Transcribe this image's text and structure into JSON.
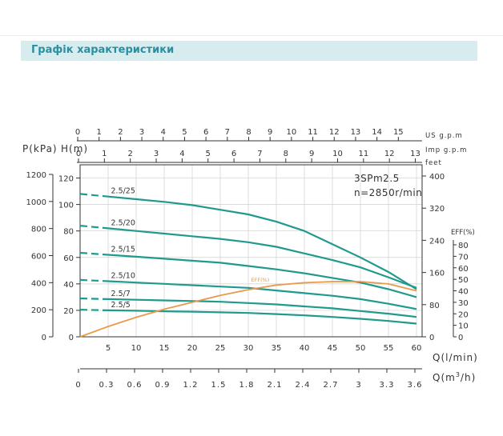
{
  "header": {
    "title": "Графік характеристики"
  },
  "colors": {
    "teal": "#1f9a8c",
    "orange": "#e89a4a",
    "axis": "#333333",
    "grid": "#cfcfcf",
    "header_bg": "#d6ecef",
    "header_text": "#2a8fa0"
  },
  "chart_data": {
    "type": "line",
    "model": "3SPm2.5",
    "speed": "n=2850r/min",
    "axes": {
      "us_gpm": {
        "label": "US g.p.m",
        "ticks": [
          "0",
          "1",
          "2",
          "3",
          "4",
          "5",
          "6",
          "7",
          "8",
          "9",
          "10",
          "11",
          "12",
          "13",
          "14",
          "15"
        ],
        "range": [
          0,
          16
        ]
      },
      "imp_gpm": {
        "label": "Imp g.p.m",
        "ticks": [
          "0",
          "1",
          "2",
          "3",
          "4",
          "5",
          "6",
          "7",
          "8",
          "9",
          "10",
          "11",
          "12",
          "13"
        ],
        "range": [
          0,
          13.2
        ]
      },
      "q_lmin": {
        "label": "Q(l/min)",
        "ticks": [
          "0",
          "5",
          "10",
          "15",
          "20",
          "25",
          "30",
          "35",
          "40",
          "45",
          "50",
          "55",
          "60"
        ],
        "range": [
          0,
          61
        ]
      },
      "q_m3h": {
        "label": "Q(m³/h)",
        "label_main": "Q(m",
        "label_sup": "3",
        "label_tail": "/h)",
        "ticks": [
          "0",
          "0.3",
          "0.6",
          "0.9",
          "1.2",
          "1.5",
          "1.8",
          "2.1",
          "2.4",
          "2.7",
          "3",
          "3.3",
          "3.6"
        ],
        "range": [
          0,
          3.66
        ]
      },
      "pressure_kpa": {
        "label": "P(kPa)",
        "ticks": [
          "0",
          "200",
          "400",
          "600",
          "800",
          "1000",
          "1200"
        ]
      },
      "head_m": {
        "label": "H(m)",
        "ticks": [
          "0",
          "20",
          "40",
          "60",
          "80",
          "100",
          "120"
        ],
        "range": [
          0,
          130
        ]
      },
      "head_feet": {
        "label": "feet",
        "ticks": [
          "0",
          "80",
          "160",
          "240",
          "320",
          "400"
        ]
      },
      "eff_pct": {
        "label": "EFF(%)",
        "ticks": [
          "0",
          "10",
          "20",
          "30",
          "40",
          "50",
          "60",
          "70",
          "80"
        ],
        "range": [
          0,
          83
        ]
      }
    },
    "series": [
      {
        "name": "2.5/25",
        "q": [
          0,
          5,
          10,
          15,
          20,
          25,
          30,
          35,
          40,
          45,
          50,
          55,
          60
        ],
        "h": [
          108,
          106,
          104,
          102,
          99.5,
          96,
          92.5,
          87,
          80,
          70,
          60,
          49,
          36
        ]
      },
      {
        "name": "2.5/20",
        "q": [
          0,
          5,
          10,
          15,
          20,
          25,
          30,
          35,
          40,
          45,
          50,
          55,
          60
        ],
        "h": [
          84,
          82,
          80,
          78,
          76,
          74,
          71.5,
          68,
          63,
          58,
          52.5,
          45,
          37
        ]
      },
      {
        "name": "2.5/15",
        "q": [
          0,
          5,
          10,
          15,
          20,
          25,
          30,
          35,
          40,
          45,
          50,
          55,
          60
        ],
        "h": [
          63.5,
          62,
          60.5,
          59,
          57.5,
          56,
          53.5,
          51,
          48,
          44.5,
          41,
          36,
          30
        ]
      },
      {
        "name": "2.5/10",
        "q": [
          0,
          5,
          10,
          15,
          20,
          25,
          30,
          35,
          40,
          45,
          50,
          55,
          60
        ],
        "h": [
          43,
          42,
          41,
          40,
          39,
          38,
          37,
          35,
          33,
          31,
          28.5,
          25,
          21
        ]
      },
      {
        "name": "2.5/7",
        "q": [
          0,
          5,
          10,
          15,
          20,
          25,
          30,
          35,
          40,
          45,
          50,
          55,
          60
        ],
        "h": [
          29,
          28.5,
          28,
          27.5,
          27,
          26.5,
          25.5,
          24.5,
          23,
          21.5,
          19.5,
          17.5,
          15
        ]
      },
      {
        "name": "2.5/5",
        "q": [
          0,
          5,
          10,
          15,
          20,
          25,
          30,
          35,
          40,
          45,
          50,
          55,
          60
        ],
        "h": [
          20.5,
          20,
          19.7,
          19.3,
          19,
          18.5,
          18,
          17.2,
          16.2,
          15,
          13.6,
          12,
          10
        ]
      }
    ],
    "efficiency": {
      "name": "EFF(%)",
      "q": [
        0,
        5,
        10,
        15,
        20,
        25,
        30,
        35,
        40,
        45,
        50,
        55,
        60
      ],
      "eff": [
        0,
        9,
        17,
        24,
        30,
        36,
        41,
        45,
        47,
        48,
        48,
        46,
        40
      ]
    },
    "grid": true
  }
}
